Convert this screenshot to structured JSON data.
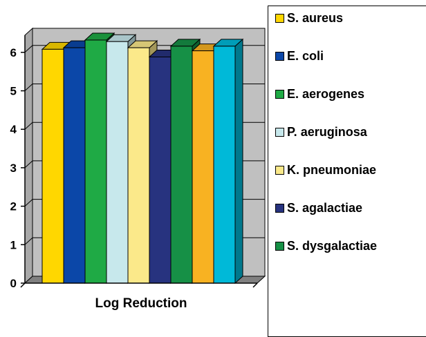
{
  "chart_data": {
    "type": "bar",
    "title": "",
    "xlabel": "Log Reduction",
    "ylabel": "",
    "categories": [
      "Log Reduction"
    ],
    "ylim": [
      0,
      6.5
    ],
    "yticks": [
      0,
      1,
      2,
      3,
      4,
      5,
      6
    ],
    "grid": true,
    "three_d": true,
    "legend_position": "right",
    "series": [
      {
        "name": "S. aureus",
        "values": [
          6.08
        ],
        "color": "#FFD700"
      },
      {
        "name": "E. coli",
        "values": [
          6.12
        ],
        "color": "#0B47A8"
      },
      {
        "name": "E. aerogenes",
        "values": [
          6.32
        ],
        "color": "#1FAA45"
      },
      {
        "name": "P. aeruginosa",
        "values": [
          6.28
        ],
        "color": "#C7E8EC"
      },
      {
        "name": "K. pneumoniae",
        "values": [
          6.12
        ],
        "color": "#FBE98A"
      },
      {
        "name": "S. agalactiae",
        "values": [
          5.88
        ],
        "color": "#27337F"
      },
      {
        "name": "S. dysgalactiae",
        "values": [
          6.16
        ],
        "color": "#169046"
      },
      {
        "name": "",
        "values": [
          6.04
        ],
        "color": "#F8B222"
      },
      {
        "name": "",
        "values": [
          6.16
        ],
        "color": "#00B9D8"
      }
    ]
  }
}
